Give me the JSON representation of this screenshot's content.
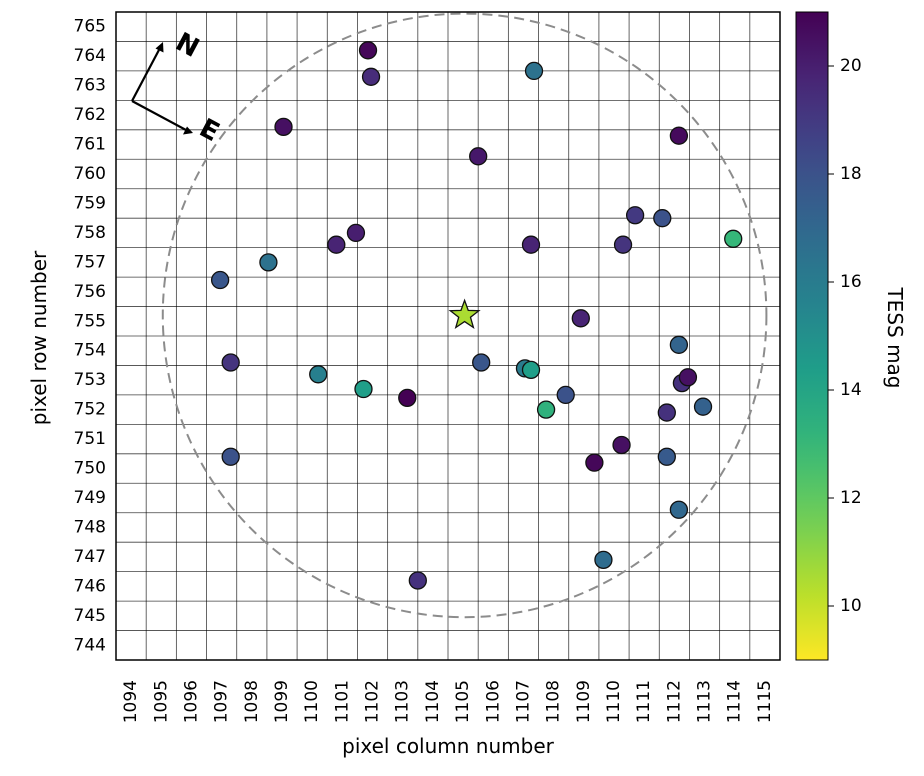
{
  "chart_data": {
    "type": "scatter",
    "xlabel": "pixel column number",
    "ylabel": "pixel row number",
    "colorbar_label": "TESS mag",
    "xlim": [
      1094,
      1116
    ],
    "ylim": [
      743.5,
      765.5
    ],
    "x_ticks": [
      "1094",
      "1095",
      "1096",
      "1097",
      "1098",
      "1099",
      "1100",
      "1101",
      "1102",
      "1103",
      "1104",
      "1105",
      "1106",
      "1107",
      "1108",
      "1109",
      "1110",
      "1111",
      "1112",
      "1113",
      "1114",
      "1115"
    ],
    "y_ticks": [
      "744",
      "745",
      "746",
      "747",
      "748",
      "749",
      "750",
      "751",
      "752",
      "753",
      "754",
      "755",
      "756",
      "757",
      "758",
      "759",
      "760",
      "761",
      "762",
      "763",
      "764",
      "765"
    ],
    "colorbar": {
      "min": 9,
      "max": 21,
      "ticks": [
        "10",
        "12",
        "14",
        "16",
        "18",
        "20"
      ],
      "colormap": "viridis_r"
    },
    "target": {
      "x": 1105.55,
      "y": 755.2,
      "mag": 10.5,
      "marker": "star"
    },
    "aperture_circle": {
      "center": [
        1105.55,
        755.2
      ],
      "radius": 10.0,
      "style": "dashed",
      "color": "#8c8c8c"
    },
    "compass": {
      "labels": [
        "N",
        "E"
      ]
    },
    "grid": true,
    "stars": [
      {
        "x": 1102.35,
        "y": 764.2,
        "mag": 20.8
      },
      {
        "x": 1102.45,
        "y": 763.3,
        "mag": 19.5
      },
      {
        "x": 1107.85,
        "y": 763.5,
        "mag": 16.5
      },
      {
        "x": 1099.55,
        "y": 761.6,
        "mag": 20.5
      },
      {
        "x": 1112.65,
        "y": 761.3,
        "mag": 20.7
      },
      {
        "x": 1106.0,
        "y": 760.6,
        "mag": 20.2
      },
      {
        "x": 1111.2,
        "y": 758.6,
        "mag": 19.0
      },
      {
        "x": 1112.1,
        "y": 758.5,
        "mag": 18.0
      },
      {
        "x": 1114.45,
        "y": 757.8,
        "mag": 13.0
      },
      {
        "x": 1101.95,
        "y": 758.0,
        "mag": 20.0
      },
      {
        "x": 1101.3,
        "y": 757.6,
        "mag": 19.8
      },
      {
        "x": 1107.75,
        "y": 757.6,
        "mag": 19.8
      },
      {
        "x": 1110.8,
        "y": 757.6,
        "mag": 19.2
      },
      {
        "x": 1099.05,
        "y": 757.0,
        "mag": 16.5
      },
      {
        "x": 1097.45,
        "y": 756.4,
        "mag": 17.8
      },
      {
        "x": 1109.4,
        "y": 755.1,
        "mag": 19.8
      },
      {
        "x": 1112.65,
        "y": 754.2,
        "mag": 17.2
      },
      {
        "x": 1097.8,
        "y": 753.6,
        "mag": 19.2
      },
      {
        "x": 1106.1,
        "y": 753.6,
        "mag": 17.8
      },
      {
        "x": 1107.55,
        "y": 753.4,
        "mag": 16.0
      },
      {
        "x": 1107.75,
        "y": 753.35,
        "mag": 14.3
      },
      {
        "x": 1100.7,
        "y": 753.2,
        "mag": 15.8
      },
      {
        "x": 1112.75,
        "y": 752.9,
        "mag": 19.3
      },
      {
        "x": 1112.95,
        "y": 753.1,
        "mag": 20.5
      },
      {
        "x": 1102.2,
        "y": 752.7,
        "mag": 14.3
      },
      {
        "x": 1103.65,
        "y": 752.4,
        "mag": 21.0
      },
      {
        "x": 1108.9,
        "y": 752.5,
        "mag": 18.0
      },
      {
        "x": 1108.25,
        "y": 752.0,
        "mag": 13.3
      },
      {
        "x": 1112.25,
        "y": 751.9,
        "mag": 19.3
      },
      {
        "x": 1113.45,
        "y": 752.1,
        "mag": 17.3
      },
      {
        "x": 1110.75,
        "y": 750.8,
        "mag": 20.5
      },
      {
        "x": 1097.8,
        "y": 750.4,
        "mag": 18.0
      },
      {
        "x": 1112.25,
        "y": 750.4,
        "mag": 17.6
      },
      {
        "x": 1109.85,
        "y": 750.2,
        "mag": 20.8
      },
      {
        "x": 1112.65,
        "y": 748.6,
        "mag": 17.0
      },
      {
        "x": 1110.15,
        "y": 746.9,
        "mag": 16.8
      },
      {
        "x": 1104.0,
        "y": 746.2,
        "mag": 19.3
      }
    ]
  }
}
